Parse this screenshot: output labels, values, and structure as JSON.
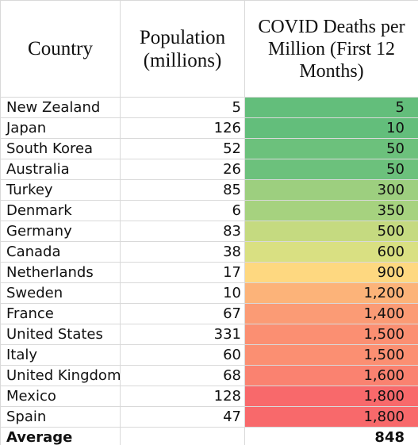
{
  "headers": {
    "country": "Country",
    "population": "Population (millions)",
    "deaths": "COVID Deaths per Million (First 12 Months)"
  },
  "rows": [
    {
      "country": "New Zealand",
      "population": "5",
      "deaths": "5",
      "color": "#63be7b"
    },
    {
      "country": "Japan",
      "population": "126",
      "deaths": "10",
      "color": "#63be7b"
    },
    {
      "country": "South Korea",
      "population": "52",
      "deaths": "50",
      "color": "#6cc17c"
    },
    {
      "country": "Australia",
      "population": "26",
      "deaths": "50",
      "color": "#6cc17c"
    },
    {
      "country": "Turkey",
      "population": "85",
      "deaths": "300",
      "color": "#9dcf7f"
    },
    {
      "country": "Denmark",
      "population": "6",
      "deaths": "350",
      "color": "#a6d27f"
    },
    {
      "country": "Germany",
      "population": "83",
      "deaths": "500",
      "color": "#c5da80"
    },
    {
      "country": "Canada",
      "population": "38",
      "deaths": "600",
      "color": "#d9e082"
    },
    {
      "country": "Netherlands",
      "population": "17",
      "deaths": "900",
      "color": "#fed880"
    },
    {
      "country": "Sweden",
      "population": "10",
      "deaths": "1,200",
      "color": "#fcb379"
    },
    {
      "country": "France",
      "population": "67",
      "deaths": "1,400",
      "color": "#fb9b75"
    },
    {
      "country": "United States",
      "population": "331",
      "deaths": "1,500",
      "color": "#fb8f72"
    },
    {
      "country": "Italy",
      "population": "60",
      "deaths": "1,500",
      "color": "#fb8f72"
    },
    {
      "country": "United Kingdom",
      "population": "68",
      "deaths": "1,600",
      "color": "#fa8270"
    },
    {
      "country": "Mexico",
      "population": "128",
      "deaths": "1,800",
      "color": "#f8696b"
    },
    {
      "country": "Spain",
      "population": "47",
      "deaths": "1,800",
      "color": "#f8696b"
    }
  ],
  "average": {
    "label": "Average",
    "population": "",
    "deaths": "848"
  }
}
